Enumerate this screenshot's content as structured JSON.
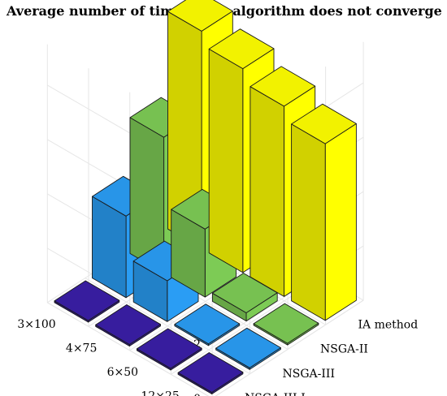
{
  "chart_data": {
    "type": "bar3d",
    "title": "Average number of times each algorithm does not converge",
    "categories": [
      "3×100",
      "4×75",
      "6×50",
      "12×25"
    ],
    "series": [
      {
        "name": "NSGA-III-I",
        "color": "#3a1fa6",
        "values": [
          0,
          0,
          0,
          0
        ]
      },
      {
        "name": "NSGA-III",
        "color": "#2a9df4",
        "values": [
          3,
          1.5,
          0,
          0
        ]
      },
      {
        "name": "NSGA-II",
        "color": "#7dcb55",
        "values": [
          5,
          2.5,
          0.3,
          0
        ]
      },
      {
        "name": "IA method",
        "color": "#ffff00",
        "values": [
          8,
          7.5,
          7,
          6.5
        ]
      }
    ],
    "zlim": [
      0,
      6
    ],
    "zticks": [
      "0",
      "2",
      "4",
      "6"
    ],
    "grid": true
  }
}
